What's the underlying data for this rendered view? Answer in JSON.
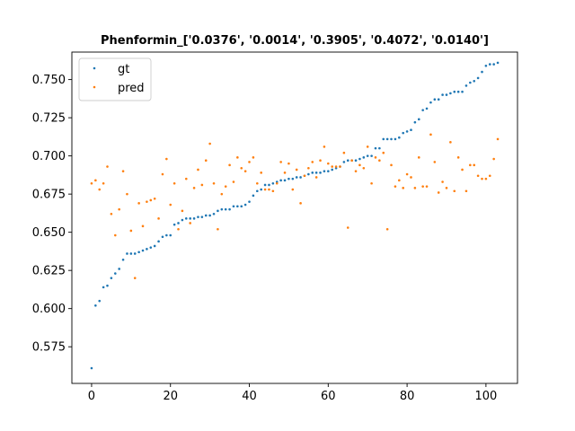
{
  "chart_data": {
    "type": "scatter",
    "title": "Phenformin_['0.0376', '0.0014', '0.3905', '0.4072', '0.0140']",
    "xlabel": "",
    "ylabel": "",
    "xlim": [
      -5,
      108
    ],
    "ylim": [
      0.551,
      0.768
    ],
    "xticks": [
      0,
      20,
      40,
      60,
      80,
      100
    ],
    "yticks": [
      0.575,
      0.6,
      0.625,
      0.65,
      0.675,
      0.7,
      0.725,
      0.75
    ],
    "ytick_labels": [
      "0.575",
      "0.600",
      "0.625",
      "0.650",
      "0.675",
      "0.700",
      "0.725",
      "0.750"
    ],
    "grid": false,
    "legend": "top-left",
    "series": [
      {
        "name": "gt",
        "color": "#1f77b4",
        "y": [
          0.561,
          0.602,
          0.605,
          0.614,
          0.615,
          0.62,
          0.623,
          0.626,
          0.632,
          0.636,
          0.636,
          0.636,
          0.637,
          0.638,
          0.639,
          0.64,
          0.641,
          0.644,
          0.647,
          0.648,
          0.648,
          0.655,
          0.656,
          0.658,
          0.659,
          0.659,
          0.659,
          0.66,
          0.66,
          0.661,
          0.661,
          0.662,
          0.664,
          0.665,
          0.665,
          0.665,
          0.667,
          0.667,
          0.667,
          0.668,
          0.67,
          0.674,
          0.677,
          0.678,
          0.681,
          0.681,
          0.682,
          0.683,
          0.684,
          0.684,
          0.685,
          0.685,
          0.686,
          0.686,
          0.687,
          0.688,
          0.689,
          0.689,
          0.689,
          0.69,
          0.69,
          0.691,
          0.692,
          0.693,
          0.696,
          0.697,
          0.697,
          0.697,
          0.698,
          0.699,
          0.7,
          0.7,
          0.705,
          0.705,
          0.711,
          0.711,
          0.711,
          0.711,
          0.712,
          0.715,
          0.716,
          0.717,
          0.722,
          0.724,
          0.73,
          0.731,
          0.735,
          0.737,
          0.737,
          0.74,
          0.74,
          0.741,
          0.742,
          0.742,
          0.742,
          0.746,
          0.748,
          0.749,
          0.751,
          0.755,
          0.759,
          0.76,
          0.76,
          0.761
        ]
      },
      {
        "name": "pred",
        "color": "#ff7f0e",
        "y": [
          0.682,
          0.684,
          0.678,
          0.682,
          0.693,
          0.662,
          0.648,
          0.665,
          0.69,
          0.675,
          0.651,
          0.62,
          0.669,
          0.654,
          0.67,
          0.671,
          0.672,
          0.659,
          0.688,
          0.698,
          0.668,
          0.682,
          0.652,
          0.664,
          0.685,
          0.656,
          0.679,
          0.691,
          0.681,
          0.697,
          0.708,
          0.682,
          0.652,
          0.675,
          0.68,
          0.694,
          0.683,
          0.699,
          0.692,
          0.69,
          0.696,
          0.699,
          0.682,
          0.689,
          0.678,
          0.678,
          0.677,
          0.682,
          0.696,
          0.689,
          0.695,
          0.678,
          0.691,
          0.669,
          0.687,
          0.692,
          0.696,
          0.686,
          0.697,
          0.706,
          0.695,
          0.693,
          0.693,
          0.693,
          0.702,
          0.653,
          0.697,
          0.69,
          0.694,
          0.692,
          0.706,
          0.682,
          0.699,
          0.697,
          0.702,
          0.652,
          0.694,
          0.68,
          0.684,
          0.679,
          0.688,
          0.686,
          0.679,
          0.699,
          0.68,
          0.68,
          0.714,
          0.696,
          0.676,
          0.683,
          0.679,
          0.709,
          0.677,
          0.699,
          0.691,
          0.677,
          0.694,
          0.694,
          0.687,
          0.685,
          0.685,
          0.687,
          0.698,
          0.711
        ]
      }
    ]
  }
}
